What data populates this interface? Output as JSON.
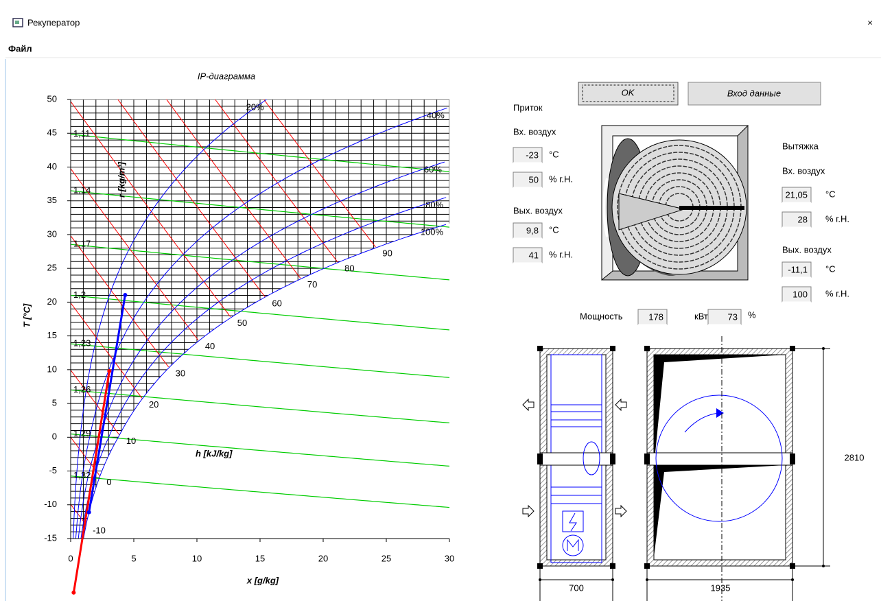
{
  "window": {
    "title": "Рекуператор",
    "menu": [
      "Файл"
    ]
  },
  "chart": {
    "type": "psychrometric",
    "title": "IP-диаграмма",
    "x_label": "x [g/kg]",
    "y_label": "T [°C]",
    "xlim": [
      0,
      30
    ],
    "ylim": [
      -15,
      50
    ],
    "xticks": [
      0,
      5,
      10,
      15,
      20,
      25,
      30
    ],
    "yticks": [
      -15,
      -10,
      -5,
      0,
      5,
      10,
      15,
      20,
      25,
      30,
      35,
      40,
      45,
      50
    ],
    "rh_curves": [
      {
        "value": 20,
        "label": "20%"
      },
      {
        "value": 40,
        "label": "40%"
      },
      {
        "value": 60,
        "label": "60%"
      },
      {
        "value": 80,
        "label": "80%"
      },
      {
        "value": 100,
        "label": "100%"
      }
    ],
    "rh_color": "#0000ff",
    "enthalpy_lines": [
      -10,
      0,
      10,
      20,
      30,
      40,
      50,
      60,
      70,
      80,
      90
    ],
    "enthalpy_label": "h [kJ/kg]",
    "enthalpy_color": "#ff0000",
    "density_lines": [
      {
        "value": 1.11,
        "label": "1,11"
      },
      {
        "value": 1.14,
        "label": "1,14"
      },
      {
        "value": 1.17,
        "label": "1,17"
      },
      {
        "value": 1.2,
        "label": "1,2"
      },
      {
        "value": 1.23,
        "label": "1,23"
      },
      {
        "value": 1.26,
        "label": "1,26"
      },
      {
        "value": 1.29,
        "label": "1,29"
      },
      {
        "value": 1.32,
        "label": "1,32"
      }
    ],
    "density_label": "r [kg/m³]",
    "density_color": "#00cc00"
  },
  "buttons": [
    "OK",
    "Вход данные"
  ],
  "units": {
    "t": "°C",
    "rh": "% г.Н."
  },
  "supply": {
    "title": "Приток",
    "color": "#ff0000",
    "inlet": {
      "label": "Вх. воздух",
      "t": -23,
      "rh": 50
    },
    "outlet": {
      "label": "Вых. воздух",
      "t": {
        "value": 9.8,
        "label": "9,8"
      },
      "rh": 41
    }
  },
  "exhaust": {
    "title": "Вытяжка",
    "color": "#0000ff",
    "inlet": {
      "label": "Вх. воздух",
      "t": {
        "value": 21.05,
        "label": "21,05"
      },
      "rh": 28
    },
    "outlet": {
      "label": "Вых. воздух",
      "t": {
        "value": -11.1,
        "label": "-11,1"
      },
      "rh": 100
    }
  },
  "power": {
    "label": "Мощность",
    "value": 178,
    "unit": "кВт",
    "efficiency": 73,
    "efficiency_unit": "%"
  },
  "dimensions": {
    "width_1": 700,
    "width_2": 1935,
    "height": 2810
  }
}
